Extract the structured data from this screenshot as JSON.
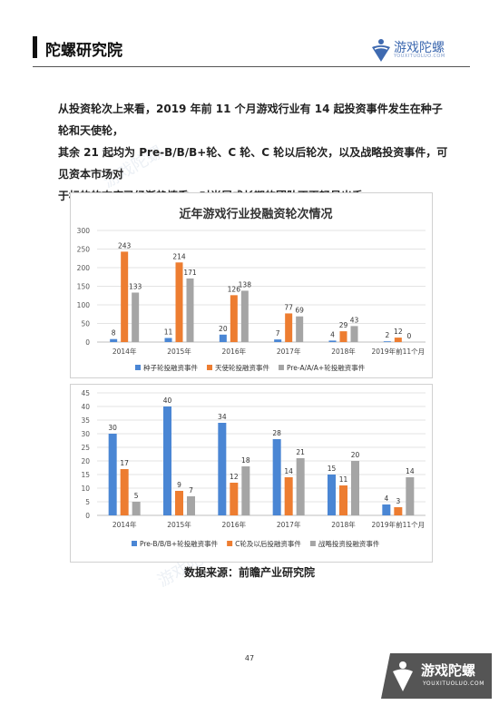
{
  "header": {
    "title": "陀螺研究院",
    "logo_text": "游戏陀螺",
    "logo_sub": "YOUXITUOLUO.COM"
  },
  "body": {
    "paragraph_lines": [
      "从投资轮次上来看，2019 年前 11 个月游戏行业有 14 起投资事件发生在种子轮和天使轮，",
      "其余 21 起均为 Pre-B/B/B+轮、C 轮、C 轮以后轮次，以及战略投资事件，可见资本市场对",
      "于标的的态度已经渐趋慎重，对尚属成长期的团队不再轻易出手。"
    ],
    "source": "数据来源：前瞻产业研究院",
    "page_number": "47"
  },
  "footer": {
    "logo_text": "游戏陀螺",
    "logo_sub": "YOUXITUOLUO.COM"
  },
  "watermark": "游戏陀螺",
  "colors": {
    "blue": "#4a86d4",
    "orange": "#ed7d31",
    "gray": "#a5a5a5",
    "logo_blue": "#3f6ab0"
  },
  "chart_data": [
    {
      "type": "bar",
      "title": "近年游戏行业投融资轮次情况",
      "categories": [
        "2014年",
        "2015年",
        "2016年",
        "2017年",
        "2018年",
        "2019年前11个月"
      ],
      "series": [
        {
          "name": "种子轮投融资事件",
          "color": "#4a86d4",
          "values": [
            8,
            11,
            20,
            7,
            4,
            2
          ]
        },
        {
          "name": "天使轮投融资事件",
          "color": "#ed7d31",
          "values": [
            243,
            214,
            126,
            77,
            29,
            12
          ]
        },
        {
          "name": "Pre-A/A/A+轮投融资事件",
          "color": "#a5a5a5",
          "values": [
            133,
            171,
            138,
            69,
            43,
            0
          ]
        }
      ],
      "yticks": [
        "0",
        "50",
        "100",
        "150",
        "200",
        "250",
        "300"
      ],
      "ylim": [
        0,
        300
      ],
      "grid": true,
      "legend": "bottom"
    },
    {
      "type": "bar",
      "title": "",
      "categories": [
        "2014年",
        "2015年",
        "2016年",
        "2017年",
        "2018年",
        "2019年前11个月"
      ],
      "series": [
        {
          "name": "Pre-B/B/B+轮投融资事件",
          "color": "#4a86d4",
          "values": [
            30,
            40,
            34,
            28,
            15,
            4
          ]
        },
        {
          "name": "C轮及以后投融资事件",
          "color": "#ed7d31",
          "values": [
            17,
            9,
            12,
            14,
            11,
            3
          ]
        },
        {
          "name": "战略投资投融资事件",
          "color": "#a5a5a5",
          "values": [
            5,
            7,
            18,
            21,
            20,
            14
          ]
        }
      ],
      "yticks": [
        "0",
        "5",
        "10",
        "15",
        "20",
        "25",
        "30",
        "35",
        "40",
        "45"
      ],
      "ylim": [
        0,
        45
      ],
      "grid": true,
      "legend": "bottom"
    }
  ]
}
